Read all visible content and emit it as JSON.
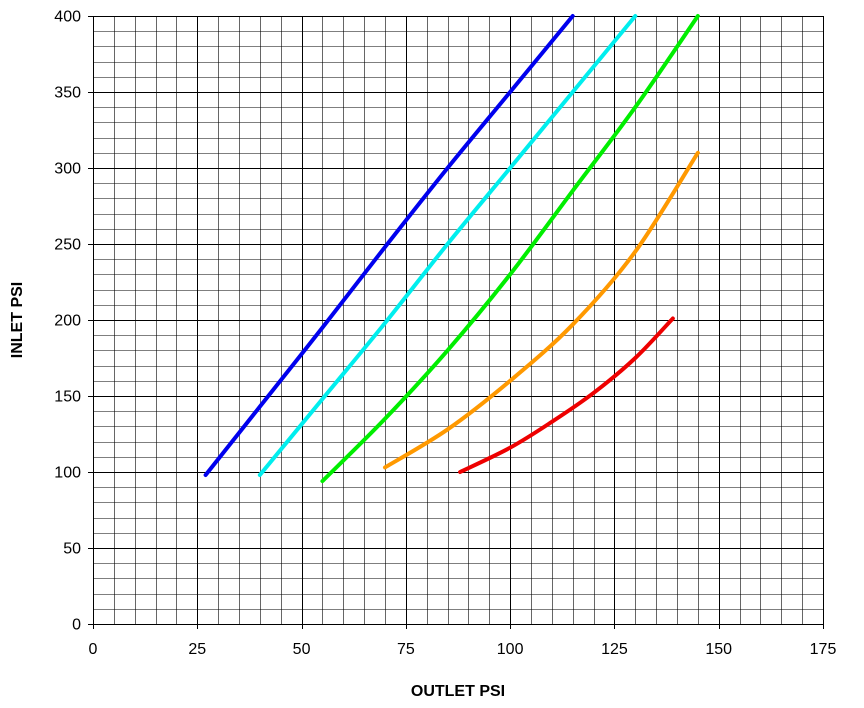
{
  "chart_data": {
    "type": "line",
    "title": "",
    "xlabel": "OUTLET PSI",
    "ylabel": "INLET PSI",
    "xlim": [
      0,
      175
    ],
    "ylim": [
      0,
      400
    ],
    "x_major_ticks": [
      0,
      25,
      50,
      75,
      100,
      125,
      150,
      175
    ],
    "y_major_ticks": [
      0,
      50,
      100,
      150,
      200,
      250,
      300,
      350,
      400
    ],
    "x_minor_step": 5,
    "y_minor_step": 10,
    "grid": true,
    "legend": "none",
    "colors": {
      "grid": "#000000",
      "axis": "#000000",
      "text": "#000000",
      "background": "#ffffff"
    },
    "series": [
      {
        "color": "#0000ee",
        "points": [
          [
            27,
            98
          ],
          [
            40,
            143
          ],
          [
            55,
            195
          ],
          [
            70,
            248
          ],
          [
            85,
            300
          ],
          [
            100,
            350
          ],
          [
            115,
            400
          ]
        ]
      },
      {
        "color": "#00eeee",
        "points": [
          [
            40,
            98
          ],
          [
            55,
            148
          ],
          [
            70,
            198
          ],
          [
            85,
            250
          ],
          [
            100,
            300
          ],
          [
            115,
            350
          ],
          [
            130,
            400
          ]
        ]
      },
      {
        "color": "#00ee00",
        "points": [
          [
            55,
            94
          ],
          [
            70,
            135
          ],
          [
            85,
            180
          ],
          [
            100,
            230
          ],
          [
            115,
            285
          ],
          [
            130,
            340
          ],
          [
            145,
            400
          ]
        ]
      },
      {
        "color": "#ff9900",
        "points": [
          [
            70,
            103
          ],
          [
            85,
            128
          ],
          [
            100,
            160
          ],
          [
            115,
            197
          ],
          [
            130,
            245
          ],
          [
            145,
            310
          ]
        ]
      },
      {
        "color": "#ee0000",
        "points": [
          [
            88,
            100
          ],
          [
            100,
            116
          ],
          [
            110,
            133
          ],
          [
            120,
            152
          ],
          [
            130,
            175
          ],
          [
            139,
            201
          ]
        ]
      }
    ]
  }
}
